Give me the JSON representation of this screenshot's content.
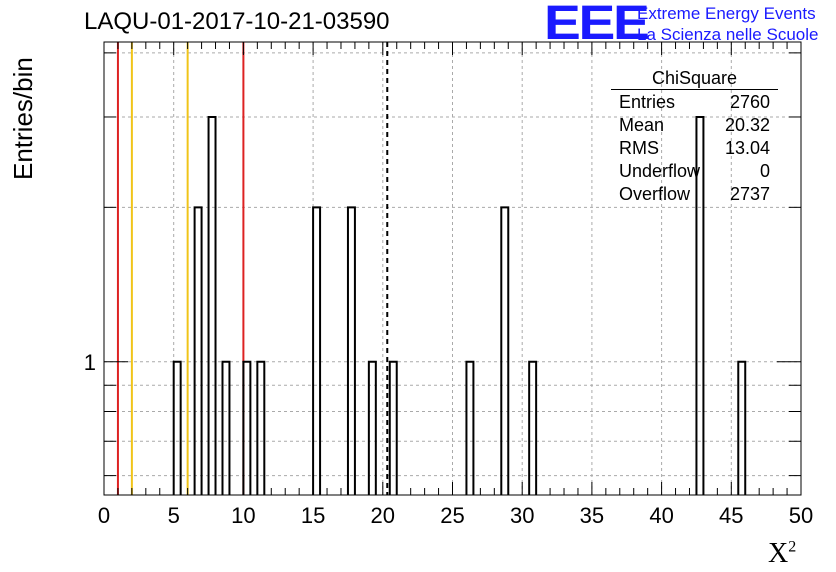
{
  "title": "LAQU-01-2017-10-21-03590",
  "logo": {
    "mark": "EEE",
    "line1": "Extreme Energy Events",
    "line2": "La Scienza nelle Scuole",
    "color": "#1a1aff"
  },
  "stats_box": {
    "name": "ChiSquare",
    "rows": [
      {
        "label": "Entries",
        "value": "2760"
      },
      {
        "label": "Mean",
        "value": "20.32"
      },
      {
        "label": "RMS",
        "value": "13.04"
      },
      {
        "label": "Underflow",
        "value": "0"
      },
      {
        "label": "Overflow",
        "value": "2737"
      }
    ]
  },
  "chart_data": {
    "type": "bar",
    "title": "LAQU-01-2017-10-21-03590",
    "xlabel": "X²",
    "xlabel_base": "X",
    "xlabel_sup": "2",
    "ylabel": "Entries/bin",
    "xlim": [
      0,
      50
    ],
    "ylog": true,
    "ylim": [
      0.55,
      4.2
    ],
    "bin_width": 0.5,
    "x_ticks": [
      0,
      5,
      10,
      15,
      20,
      25,
      30,
      35,
      40,
      45,
      50
    ],
    "y_tick_labels": [
      {
        "value": 1,
        "label": "1"
      }
    ],
    "grid": true,
    "bins": [
      {
        "x": 5.0,
        "count": 1
      },
      {
        "x": 6.5,
        "count": 2
      },
      {
        "x": 7.5,
        "count": 3
      },
      {
        "x": 8.5,
        "count": 1
      },
      {
        "x": 10.0,
        "count": 1
      },
      {
        "x": 11.0,
        "count": 1
      },
      {
        "x": 15.0,
        "count": 2
      },
      {
        "x": 17.5,
        "count": 2
      },
      {
        "x": 19.0,
        "count": 1
      },
      {
        "x": 20.5,
        "count": 1
      },
      {
        "x": 26.0,
        "count": 1
      },
      {
        "x": 28.5,
        "count": 2
      },
      {
        "x": 30.5,
        "count": 1
      },
      {
        "x": 42.5,
        "count": 3
      },
      {
        "x": 45.5,
        "count": 1
      }
    ],
    "reference_lines": [
      {
        "x": 1.0,
        "color": "#dd2222",
        "style": "solid"
      },
      {
        "x": 2.0,
        "color": "#f0c419",
        "style": "solid"
      },
      {
        "x": 6.0,
        "color": "#f0c419",
        "style": "solid"
      },
      {
        "x": 10.0,
        "color": "#dd2222",
        "style": "solid"
      },
      {
        "x": 20.32,
        "color": "#000000",
        "style": "dashed"
      }
    ]
  }
}
